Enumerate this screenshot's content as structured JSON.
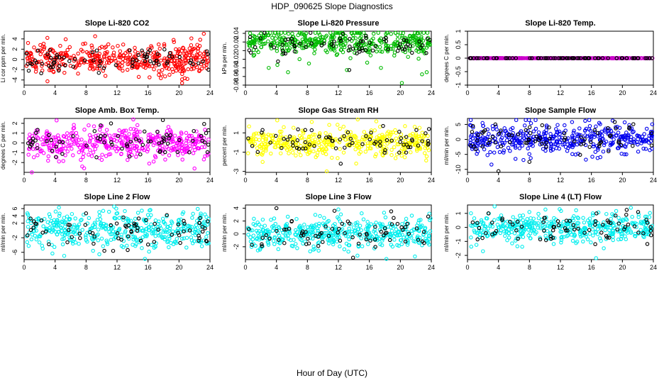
{
  "figure": {
    "title": "HDP_090625  Slope Diagnostics",
    "xlabel": "Hour of Day (UTC)"
  },
  "chart_data": [
    {
      "type": "scatter",
      "title": "Slope Li-820 CO2",
      "ylabel": "Li cor ppm per min.",
      "xlim": [
        0,
        24
      ],
      "xticks": [
        0,
        4,
        8,
        12,
        16,
        20,
        24
      ],
      "ylim": [
        -5,
        5.5
      ],
      "yticks": [
        -4,
        -2,
        0,
        2,
        4
      ],
      "series": [
        {
          "color": "#ff0000",
          "n": 420,
          "mean": 0,
          "sd": 1.5,
          "hours": [
            0.3,
            23.9
          ],
          "x": [
            0.5,
            2.1,
            3.0,
            5.2,
            7.9,
            10.5,
            12.8,
            14.8,
            16.4,
            18.2,
            19.3,
            20.4,
            21.6,
            23.2
          ],
          "y": [
            3.2,
            2.8,
            4.2,
            -2.6,
            3.1,
            -3.2,
            2.9,
            -3.4,
            2.6,
            -3.3,
            3.8,
            -4.6,
            4.1,
            5.0
          ]
        },
        {
          "color": "#000000",
          "n": 70,
          "mean": 0,
          "sd": 1.2,
          "hours": [
            0.3,
            23.9
          ],
          "x": [
            0.6,
            23.8,
            23.6
          ],
          "y": [
            -2.2,
            -2.0,
            1.6
          ]
        }
      ]
    },
    {
      "type": "scatter",
      "title": "Slope Li-820 Pressure",
      "ylabel": "kPa per min.",
      "xlim": [
        0,
        24
      ],
      "xticks": [
        0,
        4,
        8,
        12,
        16,
        20,
        24
      ],
      "ylim": [
        -0.08,
        0.045
      ],
      "yticks": [
        -0.08,
        -0.06,
        -0.04,
        -0.02,
        0,
        0.02,
        0.04
      ],
      "series": [
        {
          "color": "#00bb00",
          "n": 420,
          "mean": 0.02,
          "sd": 0.015,
          "hours": [
            0.3,
            23.9
          ],
          "x": [
            3.0,
            5.5,
            8.2,
            13.1,
            17.5,
            20.2,
            22.8,
            23.4
          ],
          "y": [
            -0.04,
            -0.05,
            -0.03,
            -0.045,
            -0.04,
            -0.075,
            -0.055,
            -0.05
          ]
        },
        {
          "color": "#000000",
          "n": 70,
          "mean": 0.015,
          "sd": 0.015,
          "hours": [
            0.3,
            23.9
          ],
          "x": [
            13.4,
            4.2
          ],
          "y": [
            -0.045,
            -0.025
          ]
        }
      ]
    },
    {
      "type": "scatter",
      "title": "Slope Li-820 Temp.",
      "ylabel": "degrees C per min.",
      "xlim": [
        0,
        24
      ],
      "xticks": [
        0,
        4,
        8,
        12,
        16,
        20,
        24
      ],
      "ylim": [
        -1,
        1
      ],
      "yticks": [
        -1.0,
        -0.5,
        0.0,
        0.5,
        1.0
      ],
      "series": [
        {
          "color": "#cc00cc",
          "n": 420,
          "mean": 0,
          "sd": 0,
          "hours": [
            0.3,
            23.9
          ],
          "x": [],
          "y": []
        },
        {
          "color": "#000000",
          "n": 70,
          "mean": 0,
          "sd": 0,
          "hours": [
            0.3,
            23.9
          ],
          "x": [],
          "y": []
        }
      ]
    },
    {
      "type": "scatter",
      "title": "Slope Amb. Box Temp.",
      "ylabel": "degrees C per min.",
      "xlim": [
        0,
        24
      ],
      "xticks": [
        0,
        4,
        8,
        12,
        16,
        20,
        24
      ],
      "ylim": [
        -3,
        2.5
      ],
      "yticks": [
        -2,
        -1,
        0,
        1,
        2
      ],
      "series": [
        {
          "color": "#ff00ff",
          "n": 420,
          "mean": 0,
          "sd": 0.8,
          "hours": [
            0.3,
            23.9
          ],
          "x": [
            1.0,
            7.5,
            22.0,
            14.1,
            4.2
          ],
          "y": [
            -3.0,
            -2.4,
            -2.6,
            2.4,
            2.3
          ]
        },
        {
          "color": "#000000",
          "n": 70,
          "mean": 0,
          "sd": 0.8,
          "hours": [
            0.3,
            23.9
          ],
          "x": [
            23.8,
            23.5
          ],
          "y": [
            1.3,
            1.0
          ]
        }
      ]
    },
    {
      "type": "scatter",
      "title": "Slope Gas Stream RH",
      "ylabel": "percent per min.",
      "xlim": [
        0,
        24
      ],
      "xticks": [
        0,
        4,
        8,
        12,
        16,
        20,
        24
      ],
      "ylim": [
        -3.1,
        2.5
      ],
      "yticks": [
        -3,
        -1,
        1
      ],
      "series": [
        {
          "color": "#ffff00",
          "n": 420,
          "mean": 0,
          "sd": 0.7,
          "hours": [
            0.3,
            23.9
          ],
          "x": [
            10.5,
            14.5,
            4.1,
            16.9
          ],
          "y": [
            -3.0,
            2.4,
            2.3,
            2.2
          ]
        },
        {
          "color": "#000000",
          "n": 70,
          "mean": 0,
          "sd": 0.7,
          "hours": [
            0.3,
            23.9
          ],
          "x": [
            23.7,
            12.3
          ],
          "y": [
            1.4,
            -2.2
          ]
        }
      ]
    },
    {
      "type": "scatter",
      "title": "Slope Sample Flow",
      "ylabel": "ml/min per min.",
      "xlim": [
        0,
        24
      ],
      "xticks": [
        0,
        4,
        8,
        12,
        16,
        20,
        24
      ],
      "ylim": [
        -11,
        7
      ],
      "yticks": [
        -10,
        -5,
        0,
        5
      ],
      "series": [
        {
          "color": "#0000ee",
          "n": 420,
          "mean": 0,
          "sd": 2.5,
          "hours": [
            0.3,
            23.9
          ],
          "x": [
            13.5,
            15.2,
            17.0,
            20.3,
            6.2
          ],
          "y": [
            5.8,
            6.2,
            5.5,
            5.7,
            -6.5
          ]
        },
        {
          "color": "#000000",
          "n": 70,
          "mean": 0,
          "sd": 2.5,
          "hours": [
            0.3,
            23.9
          ],
          "x": [
            4.0,
            3.6,
            0.7,
            8.0
          ],
          "y": [
            -10.6,
            5.0,
            4.5,
            -7.5
          ]
        }
      ]
    },
    {
      "type": "scatter",
      "title": "Slope Line 2 Flow",
      "ylabel": "ml/min per min.",
      "xlim": [
        0,
        24
      ],
      "xticks": [
        0,
        4,
        8,
        12,
        16,
        20,
        24
      ],
      "ylim": [
        -8,
        7
      ],
      "yticks": [
        -6,
        -2,
        2,
        4,
        6
      ],
      "series": [
        {
          "color": "#00eeee",
          "n": 420,
          "mean": 0,
          "sd": 2.5,
          "hours": [
            0.3,
            23.9
          ],
          "x": [
            4.5,
            11.9,
            16.2,
            15.6,
            2.4
          ],
          "y": [
            6.3,
            6.0,
            5.5,
            -7.8,
            -5.0
          ]
        },
        {
          "color": "#000000",
          "n": 70,
          "mean": 0,
          "sd": 2.3,
          "hours": [
            0.3,
            23.9
          ],
          "x": [
            8.0,
            11.5,
            3.2
          ],
          "y": [
            4.7,
            -5.6,
            -3.8
          ]
        }
      ]
    },
    {
      "type": "scatter",
      "title": "Slope Line 3 Flow",
      "ylabel": "ml/min per min.",
      "xlim": [
        0,
        24
      ],
      "xticks": [
        0,
        4,
        8,
        12,
        16,
        20,
        24
      ],
      "ylim": [
        -4,
        4.5
      ],
      "yticks": [
        -2,
        0,
        2,
        4
      ],
      "series": [
        {
          "color": "#00eeee",
          "n": 420,
          "mean": 0,
          "sd": 1.2,
          "hours": [
            0.3,
            23.9
          ],
          "x": [
            18.2,
            17.9,
            12.0,
            15.0
          ],
          "y": [
            -3.9,
            3.3,
            3.8,
            3.2
          ]
        },
        {
          "color": "#000000",
          "n": 70,
          "mean": 0,
          "sd": 1.2,
          "hours": [
            0.3,
            23.9
          ],
          "x": [
            4.0,
            11.5,
            23.6,
            13.9
          ],
          "y": [
            4.0,
            3.6,
            2.7,
            -3.7
          ]
        }
      ]
    },
    {
      "type": "scatter",
      "title": "Slope Line 4 (LT) Flow",
      "ylabel": "ml/min per min.",
      "xlim": [
        0,
        24
      ],
      "xticks": [
        0,
        4,
        8,
        12,
        16,
        20,
        24
      ],
      "ylim": [
        -2.3,
        1.6
      ],
      "yticks": [
        -2,
        -1,
        0,
        1
      ],
      "series": [
        {
          "color": "#00eeee",
          "n": 420,
          "mean": 0,
          "sd": 0.5,
          "hours": [
            0.3,
            23.9
          ],
          "x": [
            3.5,
            16.6,
            21.1,
            11.9,
            2.0
          ],
          "y": [
            1.5,
            -2.2,
            1.4,
            1.3,
            -1.7
          ]
        },
        {
          "color": "#000000",
          "n": 70,
          "mean": 0,
          "sd": 0.5,
          "hours": [
            0.3,
            23.9
          ],
          "x": [
            2.7,
            20.5,
            16.5
          ],
          "y": [
            1.0,
            0.9,
            -1.2
          ]
        }
      ]
    }
  ]
}
